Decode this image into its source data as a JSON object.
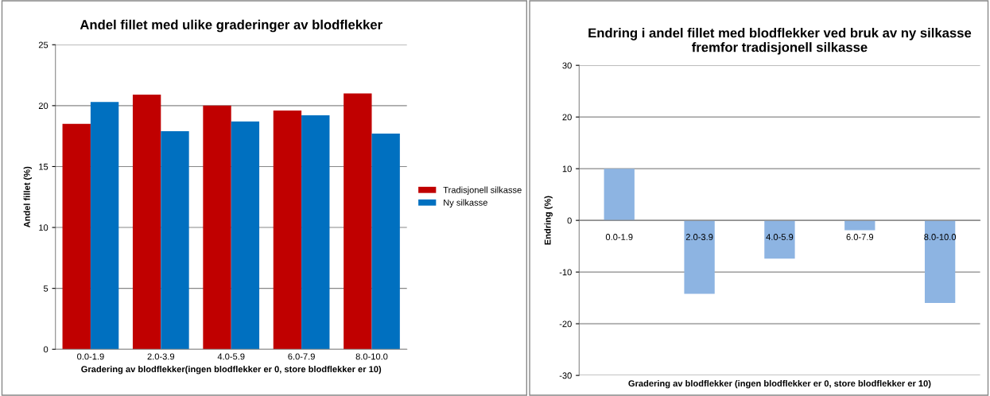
{
  "chart_data": [
    {
      "type": "bar",
      "title": "Andel fillet med ulike graderinger av blodflekker",
      "xlabel": "Gradering av blodflekker(ingen blodflekker er 0, store blodflekker er 10)",
      "ylabel": "Andel fillet (%)",
      "categories": [
        "0.0-1.9",
        "2.0-3.9",
        "4.0-5.9",
        "6.0-7.9",
        "8.0-10.0"
      ],
      "series": [
        {
          "name": "Tradisjonell silkasse",
          "color": "#c00000",
          "values": [
            18.5,
            20.9,
            20.0,
            19.6,
            21.0
          ]
        },
        {
          "name": "Ny silkasse",
          "color": "#0070c0",
          "values": [
            20.3,
            17.9,
            18.7,
            19.2,
            17.7
          ]
        }
      ],
      "ylim": [
        0,
        25
      ],
      "yticks": [
        0,
        5,
        10,
        15,
        20,
        25
      ],
      "grid": "y",
      "legend": "right"
    },
    {
      "type": "bar",
      "title": "Endring i andel fillet med blodflekker ved bruk av ny silkasse fremfor tradisjonell silkasse",
      "xlabel": "Gradering av blodflekker (ingen blodflekker er 0, store blodflekker er 10)",
      "ylabel": "Endring (%)",
      "categories": [
        "0.0-1.9",
        "2.0-3.9",
        "4.0-5.9",
        "6.0-7.9",
        "8.0-10.0"
      ],
      "series": [
        {
          "color": "#8db4e2",
          "values": [
            10.0,
            -14.2,
            -7.4,
            -1.9,
            -16.0
          ]
        }
      ],
      "ylim": [
        -30,
        30
      ],
      "yticks": [
        -30,
        -20,
        -10,
        0,
        10,
        20,
        30
      ],
      "grid": "y",
      "legend": false
    }
  ]
}
